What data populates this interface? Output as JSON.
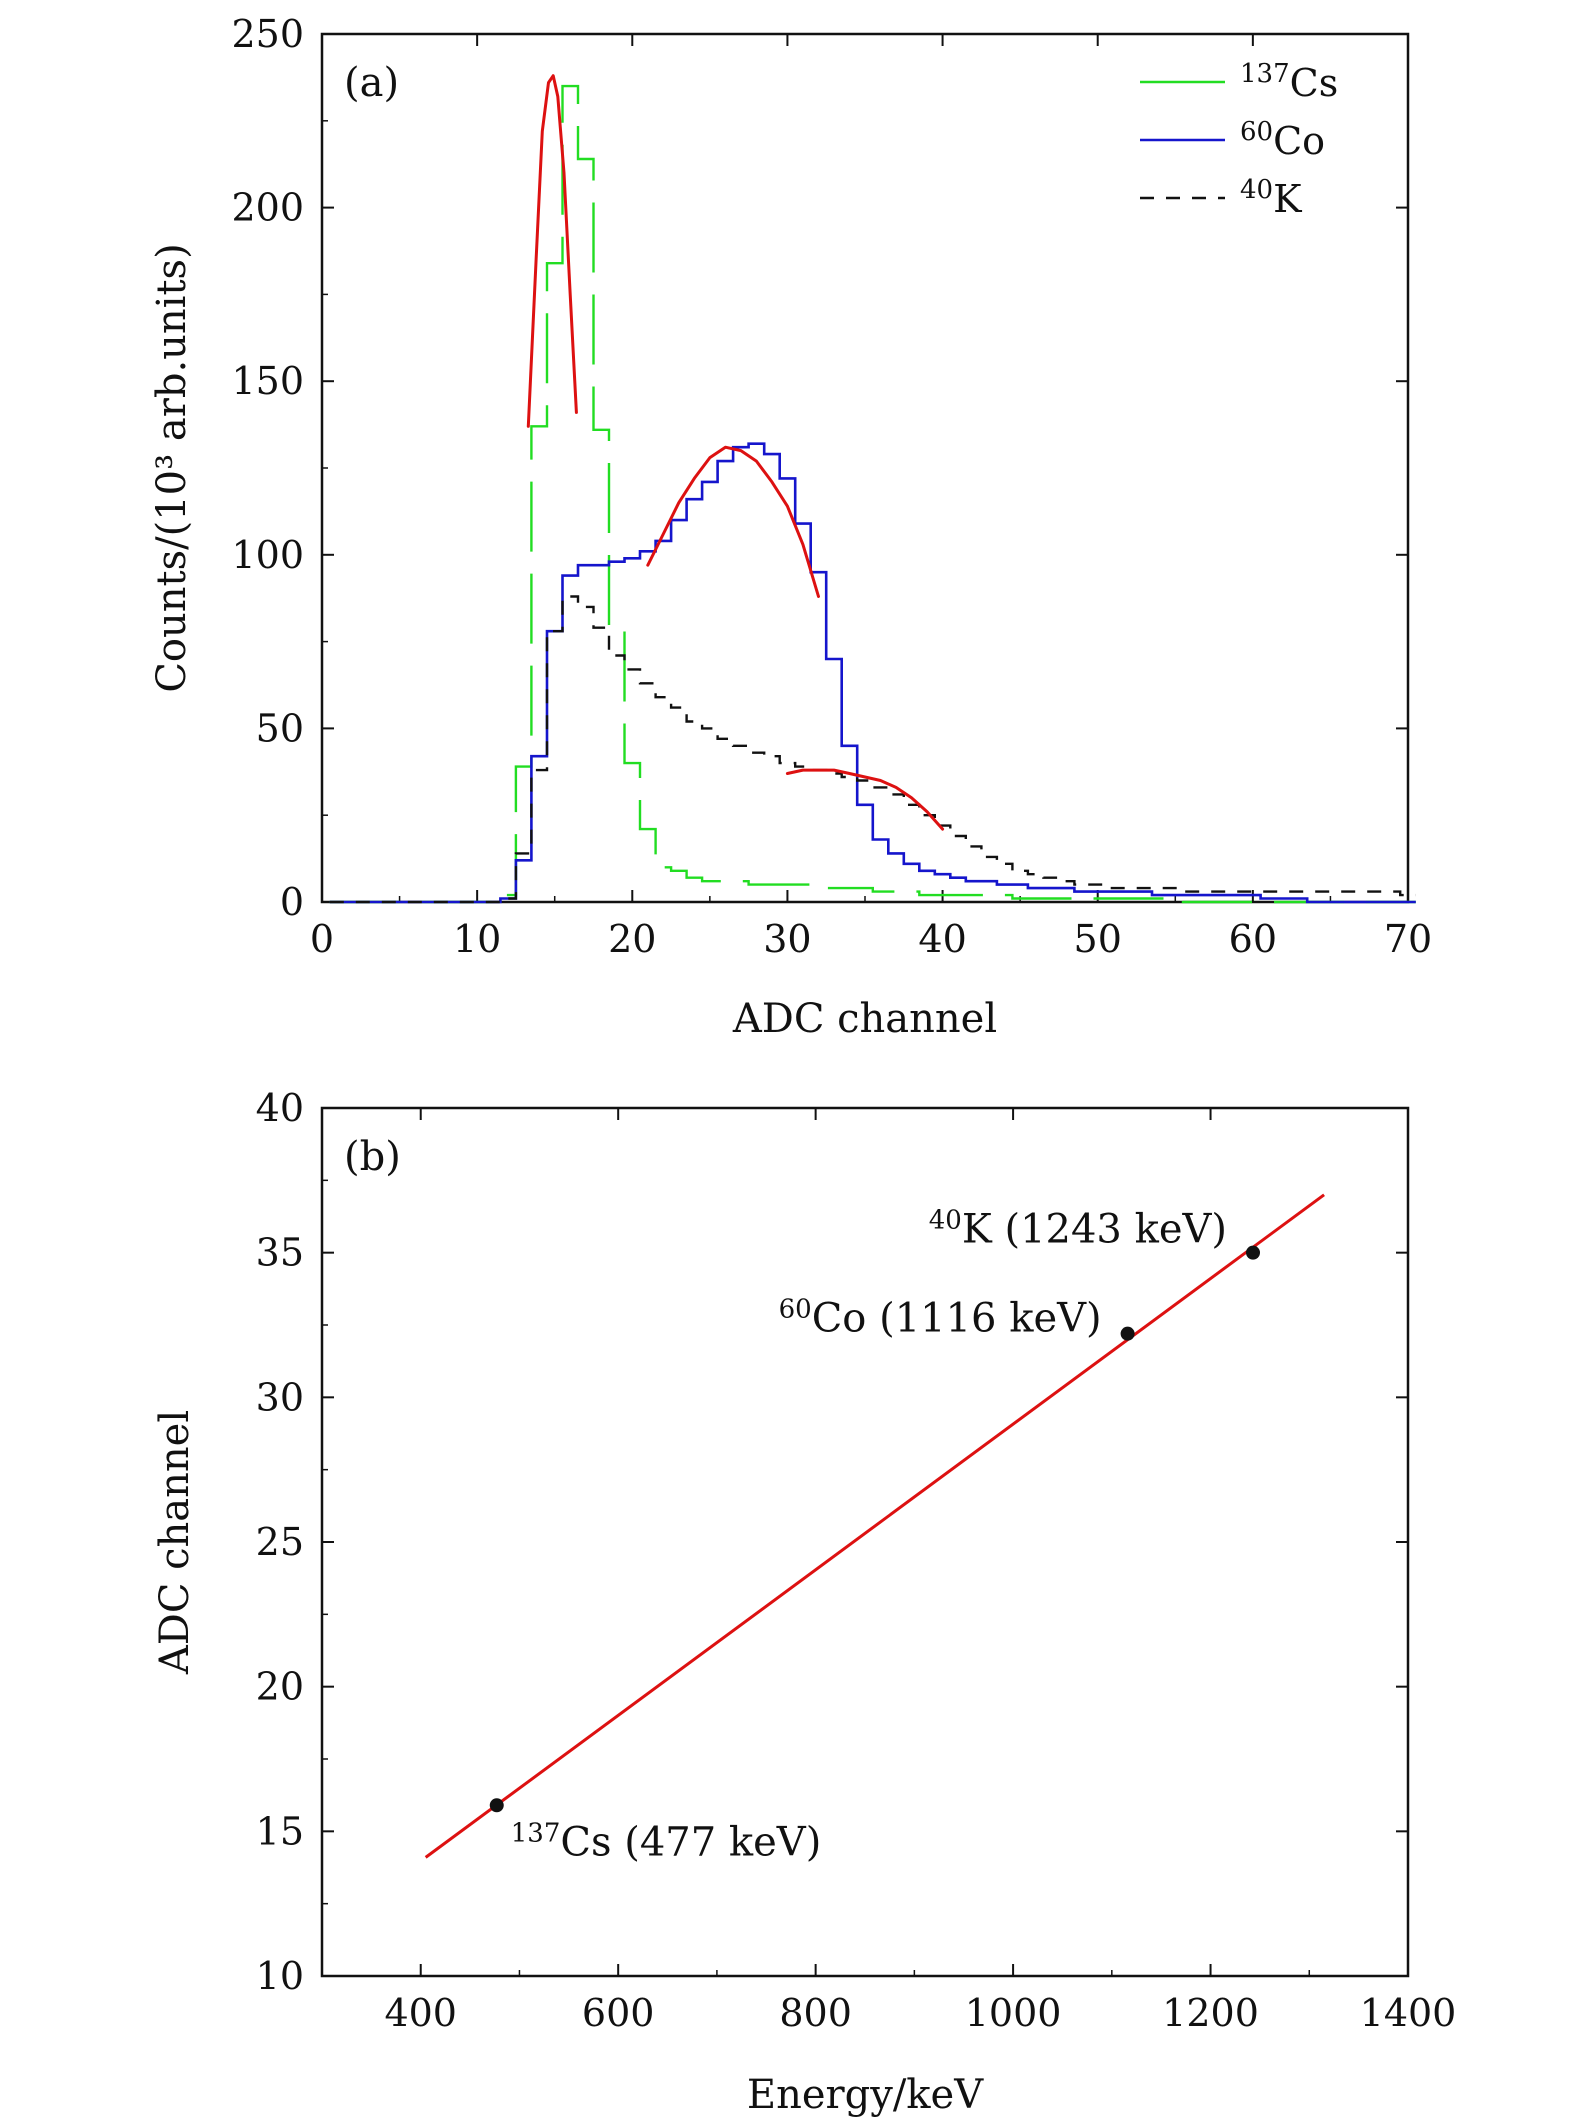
{
  "chart_data": [
    {
      "type": "line",
      "panel_label": "(a)",
      "xlabel": "ADC channel",
      "ylabel": "Counts/(10³ arb.units)",
      "xlim": [
        0,
        70
      ],
      "ylim": [
        0,
        250
      ],
      "xticks": [
        0,
        10,
        20,
        30,
        40,
        50,
        60,
        70
      ],
      "yticks": [
        0,
        50,
        100,
        150,
        200,
        250
      ],
      "grid": false,
      "legend_position": "top-right",
      "series": [
        {
          "name": "Cs",
          "name_sup": "137",
          "color": "#22dd22",
          "style": "long-dash-step",
          "x": [
            1,
            2,
            3,
            4,
            5,
            6,
            7,
            8,
            9,
            10,
            11,
            12,
            13,
            14,
            15,
            16,
            17,
            18,
            19,
            20,
            21,
            22,
            23,
            24,
            25,
            26,
            27,
            28,
            29,
            30,
            31,
            32,
            33,
            34,
            35,
            36,
            37,
            38,
            39,
            40,
            41,
            42,
            43,
            44,
            45,
            46,
            47,
            48,
            49,
            50,
            51,
            52,
            53,
            54,
            55,
            56,
            57,
            58,
            59,
            60,
            61,
            62,
            63,
            64,
            65,
            66,
            67,
            68,
            69,
            70
          ],
          "y": [
            0,
            0,
            0,
            0,
            0,
            0,
            0,
            0,
            0,
            0,
            0,
            2,
            39,
            137,
            184,
            235,
            214,
            136,
            78,
            40,
            21,
            10,
            9,
            7,
            6,
            6,
            6,
            5,
            5,
            5,
            5,
            5,
            4,
            4,
            4,
            3,
            3,
            3,
            2,
            2,
            2,
            2,
            2,
            2,
            1,
            1,
            1,
            1,
            1,
            1,
            1,
            1,
            1,
            1,
            1,
            0,
            0,
            0,
            0,
            0,
            0,
            0,
            0,
            0,
            0,
            0,
            0,
            0,
            0,
            0
          ]
        },
        {
          "name": "Co",
          "name_sup": "60",
          "color": "#1515cc",
          "style": "solid-step",
          "x": [
            1,
            2,
            3,
            4,
            5,
            6,
            7,
            8,
            9,
            10,
            11,
            12,
            13,
            14,
            15,
            16,
            17,
            18,
            19,
            20,
            21,
            22,
            23,
            24,
            25,
            26,
            27,
            28,
            29,
            30,
            31,
            32,
            33,
            34,
            35,
            36,
            37,
            38,
            39,
            40,
            41,
            42,
            43,
            44,
            45,
            46,
            47,
            48,
            49,
            50,
            51,
            52,
            53,
            54,
            55,
            56,
            57,
            58,
            59,
            60,
            61,
            62,
            63,
            64,
            65,
            66,
            67,
            68,
            69,
            70
          ],
          "y": [
            0,
            0,
            0,
            0,
            0,
            0,
            0,
            0,
            0,
            0,
            0,
            1,
            12,
            42,
            78,
            94,
            97,
            97,
            98,
            99,
            101,
            104,
            110,
            116,
            121,
            127,
            131,
            132,
            129,
            122,
            109,
            95,
            70,
            45,
            28,
            18,
            14,
            11,
            9,
            8,
            7,
            6,
            6,
            5,
            5,
            4,
            4,
            4,
            3,
            3,
            3,
            3,
            3,
            2,
            2,
            2,
            2,
            2,
            2,
            2,
            1,
            1,
            1,
            0,
            0,
            0,
            0,
            0,
            0,
            0
          ]
        },
        {
          "name": "K",
          "name_sup": "40",
          "color": "#111111",
          "style": "dashed-step",
          "x": [
            1,
            2,
            3,
            4,
            5,
            6,
            7,
            8,
            9,
            10,
            11,
            12,
            13,
            14,
            15,
            16,
            17,
            18,
            19,
            20,
            21,
            22,
            23,
            24,
            25,
            26,
            27,
            28,
            29,
            30,
            31,
            32,
            33,
            34,
            35,
            36,
            37,
            38,
            39,
            40,
            41,
            42,
            43,
            44,
            45,
            46,
            47,
            48,
            49,
            50,
            51,
            52,
            53,
            54,
            55,
            56,
            57,
            58,
            59,
            60,
            61,
            62,
            63,
            64,
            65,
            66,
            67,
            68,
            69,
            70
          ],
          "y": [
            0,
            0,
            0,
            0,
            0,
            0,
            0,
            0,
            0,
            0,
            0,
            1,
            14,
            38,
            78,
            88,
            85,
            79,
            71,
            67,
            63,
            59,
            56,
            52,
            50,
            47,
            45,
            43,
            42,
            40,
            39,
            38,
            37,
            36,
            35,
            33,
            31,
            28,
            25,
            22,
            19,
            16,
            13,
            11,
            9,
            8,
            7,
            6,
            5,
            5,
            4,
            4,
            4,
            4,
            4,
            3,
            3,
            3,
            3,
            3,
            3,
            3,
            3,
            3,
            3,
            3,
            3,
            3,
            3,
            2
          ]
        }
      ],
      "fits": [
        {
          "color": "#dd1111",
          "x": [
            13.3,
            13.8,
            14.2,
            14.6,
            14.9,
            15.2,
            15.6,
            16.0,
            16.4
          ],
          "y": [
            137,
            185,
            222,
            236,
            238,
            232,
            210,
            175,
            141
          ]
        },
        {
          "color": "#dd1111",
          "x": [
            21,
            22,
            23,
            24,
            25,
            26,
            27,
            28,
            29,
            30,
            31,
            32
          ],
          "y": [
            97,
            106,
            115,
            122,
            128,
            131,
            130,
            127,
            121,
            114,
            103,
            88
          ]
        },
        {
          "color": "#dd1111",
          "x": [
            30,
            31,
            32,
            33,
            34,
            35,
            36,
            37,
            38,
            39,
            40
          ],
          "y": [
            37,
            38,
            38,
            38,
            37,
            36,
            35,
            33,
            30,
            26,
            21
          ]
        }
      ]
    },
    {
      "type": "scatter",
      "panel_label": "(b)",
      "xlabel": "Energy/keV",
      "ylabel": "ADC channel",
      "xlim": [
        300,
        1400
      ],
      "ylim": [
        10,
        40
      ],
      "xticks": [
        400,
        600,
        800,
        1000,
        1200,
        1400
      ],
      "yticks": [
        10,
        15,
        20,
        25,
        30,
        35,
        40
      ],
      "grid": false,
      "points": [
        {
          "x": 477,
          "y": 15.9,
          "label_sup": "137",
          "label": "Cs (477 keV)"
        },
        {
          "x": 1116,
          "y": 32.2,
          "label_sup": "60",
          "label": "Co (1116 keV)"
        },
        {
          "x": 1243,
          "y": 35.0,
          "label_sup": "40",
          "label": "K (1243 keV)"
        }
      ],
      "fit_line": {
        "color": "#dd1111",
        "x": [
          405,
          1315
        ],
        "y": [
          14.1,
          37.0
        ]
      }
    }
  ]
}
